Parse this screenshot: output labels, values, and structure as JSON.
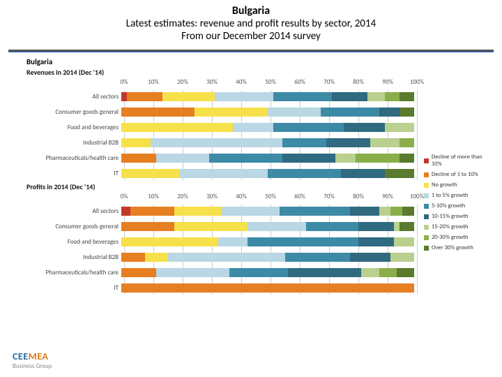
{
  "header": {
    "title": "Bulgaria",
    "subtitle": "Latest estimates: revenue and profit results by sector, 2014",
    "subtitle2": "From our December 2014 survey"
  },
  "country_label": "Bulgaria",
  "axis": {
    "min": 0,
    "max": 100,
    "step": 10,
    "suffix": "%"
  },
  "legend": [
    {
      "label": "Decline of more than 10%",
      "color": "#c0392b"
    },
    {
      "label": "Decline of 1 to 10%",
      "color": "#e67e22"
    },
    {
      "label": "No growth",
      "color": "#f6e14b"
    },
    {
      "label": "1 to 5% growth",
      "color": "#b9d7e4"
    },
    {
      "label": "5-10% growth",
      "color": "#3d8aa6"
    },
    {
      "label": "10-15% growth",
      "color": "#2f6a80"
    },
    {
      "label": "15-20% growth",
      "color": "#b9d08e"
    },
    {
      "label": "20-30% growth",
      "color": "#8aae4a"
    },
    {
      "label": "Over 30% growth",
      "color": "#5a7a2d"
    }
  ],
  "panels": [
    {
      "title": "Revenues in 2014 (Dec '14)",
      "rows": [
        {
          "label": "All sectors",
          "values": [
            2,
            12,
            18,
            20,
            20,
            12,
            6,
            5,
            5
          ]
        },
        {
          "label": "Consumer goods general",
          "values": [
            0,
            25,
            25,
            18,
            20,
            7,
            0,
            0,
            5
          ]
        },
        {
          "label": "Food and beverages",
          "values": [
            0,
            0,
            38,
            14,
            24,
            14,
            10,
            0,
            0
          ]
        },
        {
          "label": "Industrial B2B",
          "values": [
            0,
            0,
            10,
            45,
            15,
            15,
            10,
            5,
            0
          ]
        },
        {
          "label": "Pharmaceuticals/health care",
          "values": [
            0,
            12,
            0,
            18,
            25,
            18,
            7,
            15,
            5
          ]
        },
        {
          "label": "IT",
          "values": [
            0,
            0,
            20,
            30,
            25,
            15,
            0,
            0,
            10
          ]
        }
      ]
    },
    {
      "title": "Profits in 2014 (Dec '14)",
      "rows": [
        {
          "label": "All sectors",
          "values": [
            3,
            15,
            16,
            20,
            24,
            10,
            4,
            4,
            4
          ]
        },
        {
          "label": "Consumer goods general",
          "values": [
            0,
            18,
            25,
            20,
            18,
            12,
            2,
            0,
            5
          ]
        },
        {
          "label": "Food and beverages",
          "values": [
            0,
            0,
            33,
            10,
            38,
            12,
            7,
            0,
            0
          ]
        },
        {
          "label": "Industrial B2B",
          "values": [
            0,
            8,
            8,
            40,
            22,
            14,
            8,
            0,
            0
          ]
        },
        {
          "label": "Pharmaceuticals/health care",
          "values": [
            0,
            12,
            0,
            25,
            20,
            25,
            6,
            6,
            6
          ]
        },
        {
          "label": "IT",
          "values": [
            0,
            100,
            0,
            0,
            0,
            0,
            0,
            0,
            0
          ]
        }
      ]
    }
  ],
  "logo": {
    "line1a": "CEE",
    "line1b": "MEA",
    "line2": "Business Group"
  }
}
